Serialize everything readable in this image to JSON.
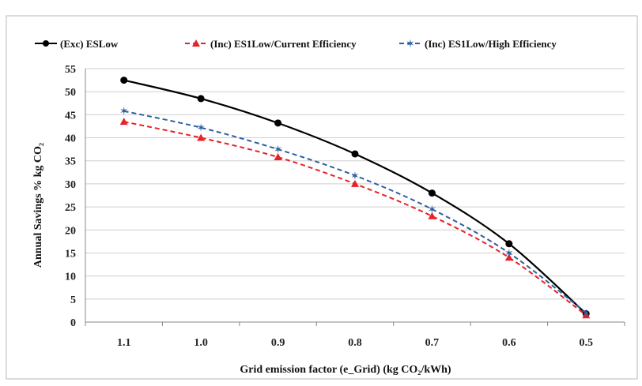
{
  "chart_data": {
    "type": "line",
    "categories": [
      "1.1",
      "1.0",
      "0.9",
      "0.8",
      "0.7",
      "0.6",
      "0.5"
    ],
    "x": [
      1.1,
      1.0,
      0.9,
      0.8,
      0.7,
      0.6,
      0.5
    ],
    "series": [
      {
        "name": "(Exc) ESLow",
        "values": [
          52.5,
          48.5,
          43.2,
          36.5,
          28.0,
          17.0,
          1.8
        ],
        "color": "#000000",
        "dash": "solid",
        "marker": "circle"
      },
      {
        "name": "(Inc) ES1Low/Current Efficiency",
        "values": [
          43.5,
          40.0,
          35.8,
          30.0,
          23.0,
          14.0,
          1.5
        ],
        "color": "#e8202a",
        "dash": "dashed",
        "marker": "triangle"
      },
      {
        "name": "(Inc) ES1Low/High Efficiency",
        "values": [
          45.8,
          42.2,
          37.5,
          31.8,
          24.5,
          15.0,
          2.0
        ],
        "color": "#2e5f9e",
        "dash": "dashed",
        "marker": "star"
      }
    ],
    "y_ticks": [
      "0",
      "5",
      "10",
      "15",
      "20",
      "25",
      "30",
      "35",
      "40",
      "45",
      "50",
      "55"
    ],
    "ylim": [
      0,
      55
    ],
    "xlabel": "Grid emission factor (e_Grid) (kg CO₂/kWh)",
    "ylabel": "Annual Savings % kg CO₂",
    "grid": true,
    "legend_position": "top"
  }
}
